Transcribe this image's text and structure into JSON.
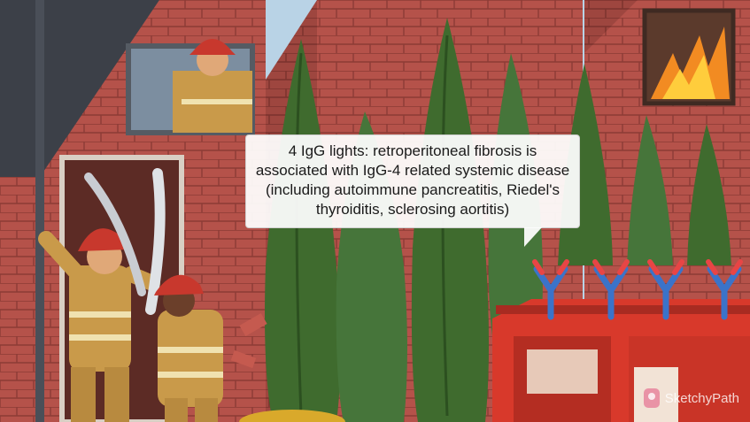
{
  "scene": {
    "description_icons": [
      "firefighter-icon",
      "antibody-icon",
      "fire-icon",
      "fire-truck-icon",
      "cypress-tree-icon"
    ],
    "colors": {
      "brick": "#b5524a",
      "sky": "#b9d3e6",
      "tree": "#3f6b2e",
      "uniform": "#c99a4a",
      "truck": "#d8392b",
      "antibody": "#3b73c9",
      "fire": "#f28b22"
    }
  },
  "callout": {
    "text": "4 IgG lights: retroperitoneal fibrosis is associated with IgG-4 related systemic disease (including autoimmune pancreatitis, Riedel's thyroiditis, sclerosing aortitis)"
  },
  "brand": {
    "name": "SketchyPath"
  }
}
